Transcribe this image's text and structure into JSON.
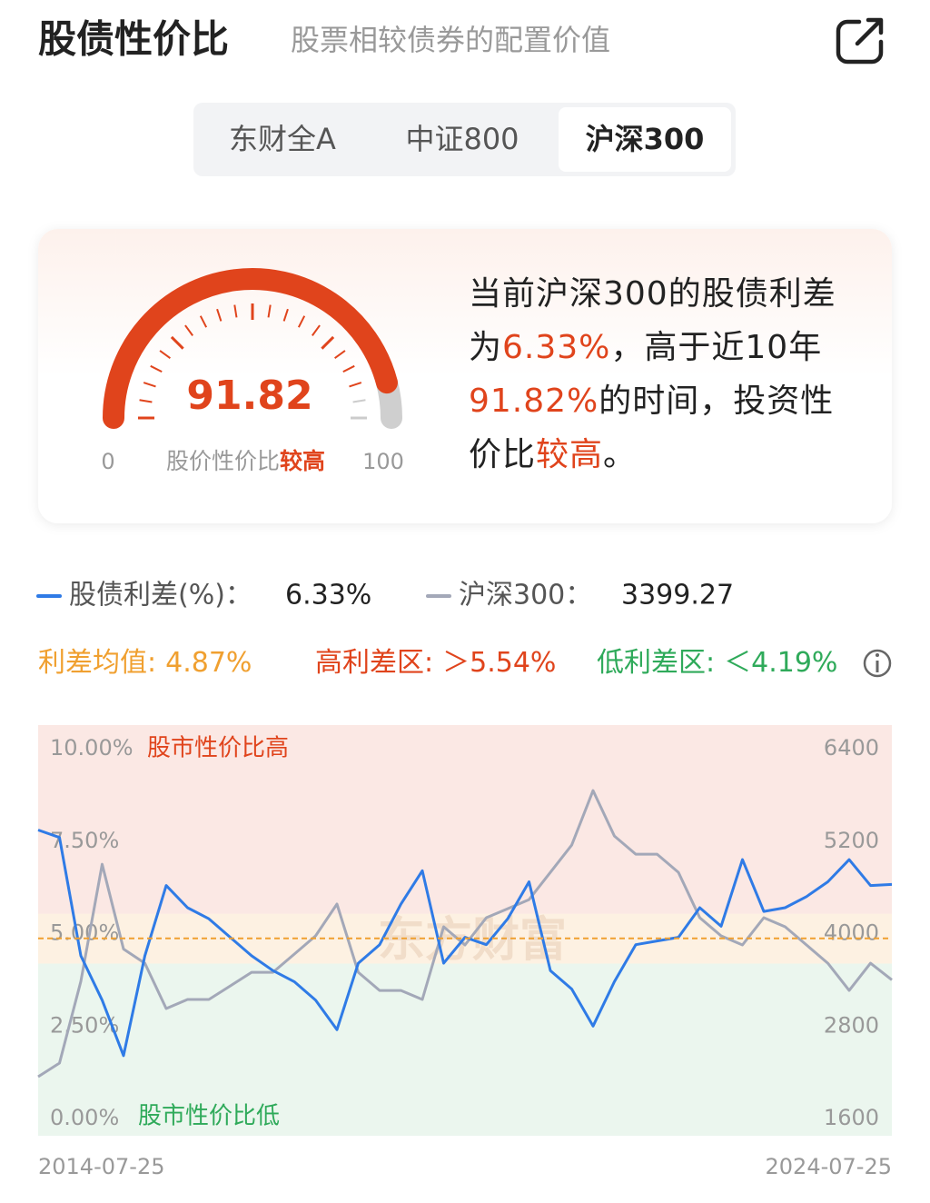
{
  "header": {
    "title": "股债性价比",
    "subtitle": "股票相较债券的配置价值"
  },
  "tabs": {
    "items": [
      "东财全A",
      "中证800",
      "沪深300"
    ],
    "active": 2
  },
  "gauge": {
    "value": 91.82,
    "min": 0,
    "max": 100,
    "label": "股价性价比",
    "level": "较高"
  },
  "description": {
    "lines": [
      [
        {
          "text": "当前沪深300的股债利差",
          "highlight": false
        }
      ],
      [
        {
          "text": "为",
          "highlight": false
        },
        {
          "text": "6.33%",
          "highlight": true
        },
        {
          "text": "，高于近10年",
          "highlight": false
        }
      ],
      [
        {
          "text": "91.82%",
          "highlight": true
        },
        {
          "text": "的时间，投资性",
          "highlight": false
        }
      ],
      [
        {
          "text": "价比",
          "highlight": false
        },
        {
          "text": "较高",
          "highlight": true
        },
        {
          "text": "。",
          "highlight": false
        }
      ]
    ]
  },
  "chart_data": {
    "type": "line",
    "categories": [
      "2014-07-25",
      null,
      null,
      null,
      null,
      null,
      null,
      null,
      null,
      null,
      null,
      null,
      null,
      null,
      null,
      null,
      null,
      null,
      null,
      null,
      null,
      null,
      null,
      null,
      null,
      null,
      null,
      null,
      null,
      null,
      null,
      null,
      null,
      null,
      null,
      null,
      null,
      null,
      null,
      null,
      "2024-07-25"
    ],
    "series": [
      {
        "name": "股债利差(%)：",
        "color": "#2f7be6",
        "current_label": "6.33%",
        "values": [
          7.8,
          7.6,
          4.4,
          3.2,
          1.7,
          4.4,
          6.3,
          5.7,
          5.4,
          4.9,
          4.4,
          4.0,
          3.7,
          3.2,
          2.4,
          4.2,
          4.7,
          5.8,
          6.7,
          4.2,
          4.9,
          4.7,
          5.4,
          6.4,
          4.0,
          3.5,
          2.5,
          3.7,
          4.7,
          4.8,
          4.9,
          5.7,
          5.2,
          7.0,
          5.6,
          5.7,
          6.0,
          6.4,
          7.0,
          6.3,
          6.33
        ]
      },
      {
        "name": "沪深300：",
        "color": "#a3a8b8",
        "axis": "y2",
        "current_label": "3399.27",
        "values": [
          2142,
          2319,
          3380,
          4900,
          3800,
          3616,
          3027,
          3145,
          3145,
          3321,
          3498,
          3498,
          3734,
          3970,
          4383,
          3498,
          3262,
          3262,
          3145,
          4088,
          3852,
          4206,
          4323,
          4441,
          4795,
          5149,
          5856,
          5267,
          5031,
          5031,
          4795,
          4206,
          3970,
          3852,
          4206,
          4088,
          3852,
          3616,
          3262,
          3616,
          3399.27
        ]
      }
    ],
    "ylim": [
      0,
      10
    ],
    "yticks": [
      {
        "value": 0,
        "label": "0.00%"
      },
      {
        "value": 2.5,
        "label": "2.50%"
      },
      {
        "value": 5,
        "label": "5.00%"
      },
      {
        "value": 7.5,
        "label": "7.50%"
      },
      {
        "value": 10,
        "label": "10.00%"
      }
    ],
    "y2lim": [
      1600,
      6400
    ],
    "y2ticks": [
      1600,
      2800,
      4000,
      5200,
      6400
    ],
    "grid": false,
    "mean": {
      "label": "利差均值:",
      "value": 4.87,
      "value_label": "4.87%",
      "color": "#f0a030"
    },
    "high": {
      "label": "高利差区:",
      "value": 5.54,
      "value_label": "＞5.54%",
      "color": "#e0441c",
      "zone_label": "股市性价比高",
      "zone_color": "#fbe8e4"
    },
    "low": {
      "label": "低利差区:",
      "value": 4.19,
      "value_label": "＜4.19%",
      "color": "#2faa5a",
      "zone_label": "股市性价比低",
      "zone_color": "#ebf6ee"
    },
    "watermark": "东方财富"
  }
}
